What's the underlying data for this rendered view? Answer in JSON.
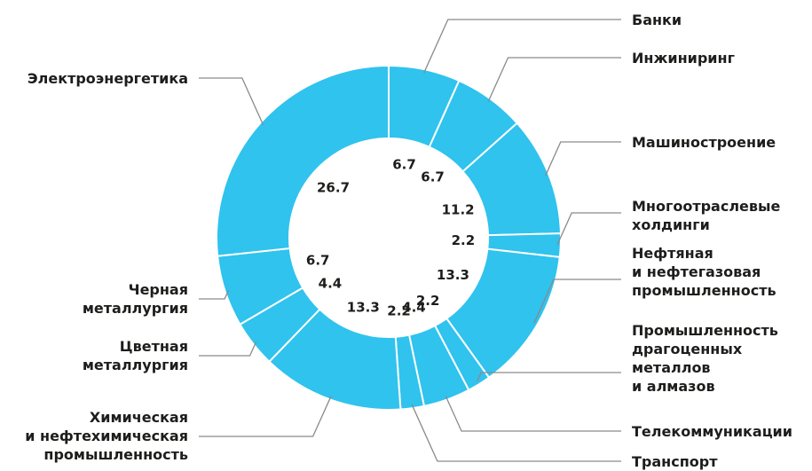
{
  "chart_data": {
    "type": "donut",
    "categories": [
      "Банки",
      "Инжиниринг",
      "Машиностроение",
      "Многоотраслевые\nхолдинги",
      "Нефтяная\nи нефтегазовая\nпромышленность",
      "Промышленность\nдрагоценных\nметаллов\nи алмазов",
      "Телекоммуникации",
      "Транспорт",
      "Химическая\nи нефтехимическая\nпромышленность",
      "Цветная\nметаллургия",
      "Черная\nметаллургия",
      "Электроэнергетика"
    ],
    "values": [
      6.7,
      6.7,
      11.2,
      2.2,
      13.3,
      2.2,
      4.4,
      2.2,
      13.3,
      4.4,
      6.7,
      26.7
    ],
    "color": "#2fc3ee"
  }
}
